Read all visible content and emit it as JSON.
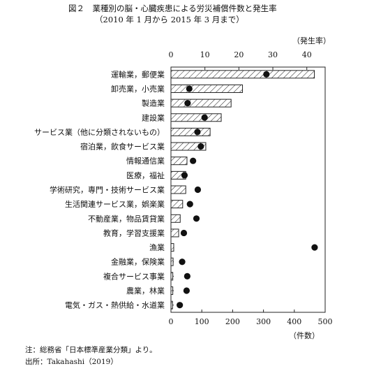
{
  "figure": {
    "title": "図２　業種別の脳・心臓疾患による労災補償件数と発生率",
    "subtitle": "（2010 年 1 月から 2015 年 3 月まで）",
    "notes": [
      "注：総務省「日本標準産業分類」より。",
      "出所：Takahashi（2019）"
    ]
  },
  "chart_data": {
    "type": "bar",
    "orientation": "horizontal",
    "categories": [
      "運輸業，郵便業",
      "卸売業，小売業",
      "製造業",
      "建設業",
      "サービス業（他に分類されないもの）",
      "宿泊業，飲食サービス業",
      "情報通信業",
      "医療，福祉",
      "学術研究，専門・技術サービス業",
      "生活関連サービス業，娯楽業",
      "不動産業，物品賃貸業",
      "教育，学習支援業",
      "漁業",
      "金融業，保険業",
      "複合サービス事業",
      "農業，林業",
      "電気・ガス・熱供給・水道業"
    ],
    "series": [
      {
        "kind": "bar",
        "pattern": "hatched",
        "values": [
          465,
          232,
          195,
          163,
          127,
          113,
          52,
          48,
          48,
          38,
          30,
          25,
          9,
          7,
          6,
          6,
          5
        ]
      },
      {
        "kind": "dot",
        "axis": "top",
        "values": [
          28.1,
          5.4,
          4.9,
          9.9,
          7.8,
          8.8,
          6.5,
          4.0,
          7.9,
          5.6,
          7.5,
          3.8,
          42.3,
          3.3,
          4.8,
          4.6,
          2.6
        ]
      }
    ],
    "xlabel": "（件数）",
    "x_ticks": [
      "0",
      "100",
      "200",
      "300",
      "400",
      "500"
    ],
    "xlim": [
      0,
      500
    ],
    "top_label": "（発生率）",
    "top_ticks": [
      "0",
      "10",
      "20",
      "30",
      "40"
    ],
    "top_lim": [
      0,
      45.4
    ],
    "grid": false
  }
}
